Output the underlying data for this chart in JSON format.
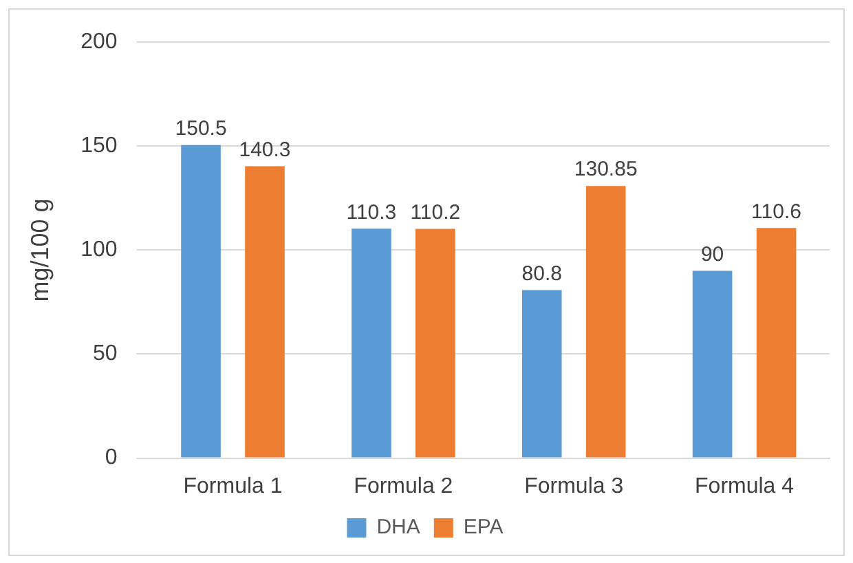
{
  "chart_data": {
    "type": "bar",
    "ylabel": "mg/100 g",
    "categories": [
      "Formula 1",
      "Formula 2",
      "Formula 3",
      "Formula 4"
    ],
    "series": [
      {
        "name": "DHA",
        "color": "#5b9bd5",
        "values": [
          150.5,
          110.3,
          80.8,
          90
        ]
      },
      {
        "name": "EPA",
        "color": "#ed7d31",
        "values": [
          140.3,
          110.2,
          130.85,
          110.6
        ]
      }
    ],
    "ylim": [
      0,
      200
    ],
    "yticks": [
      0,
      50,
      100,
      150,
      200
    ],
    "grid": "y",
    "legend": "bottom",
    "data_labels": true
  }
}
